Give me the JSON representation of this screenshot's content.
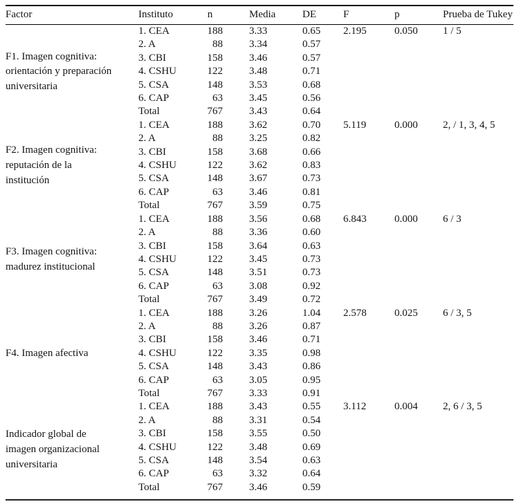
{
  "table": {
    "columns": [
      "Factor",
      "Instituto",
      "n",
      "Media",
      "DE",
      "F",
      "p",
      "Prueba de Tukey"
    ],
    "groups": [
      {
        "factor": "F1. Imagen cognitiva:\norientación y preparación\nuniversitaria",
        "F": "2.195",
        "p": "0.050",
        "tukey": "1 / 5",
        "rows": [
          {
            "instituto": "1. CEA",
            "n": "188",
            "media": "3.33",
            "de": "0.65"
          },
          {
            "instituto": "2. A",
            "n": "88",
            "media": "3.34",
            "de": "0.57"
          },
          {
            "instituto": "3. CBI",
            "n": "158",
            "media": "3.46",
            "de": "0.57"
          },
          {
            "instituto": "4. CSHU",
            "n": "122",
            "media": "3.48",
            "de": "0.71"
          },
          {
            "instituto": "5. CSA",
            "n": "148",
            "media": "3.53",
            "de": "0.68"
          },
          {
            "instituto": "6. CAP",
            "n": "63",
            "media": "3.45",
            "de": "0.56"
          },
          {
            "instituto": "Total",
            "n": "767",
            "media": "3.43",
            "de": "0.64"
          }
        ]
      },
      {
        "factor": "F2. Imagen cognitiva:\nreputación de la\ninstitución",
        "F": "5.119",
        "p": "0.000",
        "tukey": "2, / 1, 3, 4, 5",
        "rows": [
          {
            "instituto": "1. CEA",
            "n": "188",
            "media": "3.62",
            "de": "0.70"
          },
          {
            "instituto": "2. A",
            "n": "88",
            "media": "3.25",
            "de": "0.82"
          },
          {
            "instituto": "3. CBI",
            "n": "158",
            "media": "3.68",
            "de": "0.66"
          },
          {
            "instituto": "4. CSHU",
            "n": "122",
            "media": "3.62",
            "de": "0.83"
          },
          {
            "instituto": "5. CSA",
            "n": "148",
            "media": "3.67",
            "de": "0.73"
          },
          {
            "instituto": "6. CAP",
            "n": "63",
            "media": "3.46",
            "de": "0.81"
          },
          {
            "instituto": "Total",
            "n": "767",
            "media": "3.59",
            "de": "0.75"
          }
        ]
      },
      {
        "factor": "F3. Imagen cognitiva:\nmadurez institucional",
        "F": "6.843",
        "p": "0.000",
        "tukey": "6 / 3",
        "rows": [
          {
            "instituto": "1. CEA",
            "n": "188",
            "media": "3.56",
            "de": "0.68"
          },
          {
            "instituto": "2. A",
            "n": "88",
            "media": "3.36",
            "de": "0.60"
          },
          {
            "instituto": "3. CBI",
            "n": "158",
            "media": "3.64",
            "de": "0.63"
          },
          {
            "instituto": "4. CSHU",
            "n": "122",
            "media": "3.45",
            "de": "0.73"
          },
          {
            "instituto": "5. CSA",
            "n": "148",
            "media": "3.51",
            "de": "0.73"
          },
          {
            "instituto": "6. CAP",
            "n": "63",
            "media": "3.08",
            "de": "0.92"
          },
          {
            "instituto": "Total",
            "n": "767",
            "media": "3.49",
            "de": "0.72"
          }
        ]
      },
      {
        "factor": "F4. Imagen afectiva",
        "F": "2.578",
        "p": "0.025",
        "tukey": "6 / 3, 5",
        "rows": [
          {
            "instituto": "1. CEA",
            "n": "188",
            "media": "3.26",
            "de": "1.04"
          },
          {
            "instituto": "2. A",
            "n": "88",
            "media": "3.26",
            "de": "0.87"
          },
          {
            "instituto": "3. CBI",
            "n": "158",
            "media": "3.46",
            "de": "0.71"
          },
          {
            "instituto": "4. CSHU",
            "n": "122",
            "media": "3.35",
            "de": "0.98"
          },
          {
            "instituto": "5. CSA",
            "n": "148",
            "media": "3.43",
            "de": "0.86"
          },
          {
            "instituto": "6. CAP",
            "n": "63",
            "media": "3.05",
            "de": "0.95"
          },
          {
            "instituto": "Total",
            "n": "767",
            "media": "3.33",
            "de": "0.91"
          }
        ]
      },
      {
        "factor": "Indicador global de\nimagen organizacional\nuniversitaria",
        "F": "3.112",
        "p": "0.004",
        "tukey": "2, 6 / 3, 5",
        "rows": [
          {
            "instituto": "1. CEA",
            "n": "188",
            "media": "3.43",
            "de": "0.55"
          },
          {
            "instituto": "2. A",
            "n": "88",
            "media": "3.31",
            "de": "0.54"
          },
          {
            "instituto": "3. CBI",
            "n": "158",
            "media": "3.55",
            "de": "0.50"
          },
          {
            "instituto": "4. CSHU",
            "n": "122",
            "media": "3.48",
            "de": "0.69"
          },
          {
            "instituto": "5. CSA",
            "n": "148",
            "media": "3.54",
            "de": "0.63"
          },
          {
            "instituto": "6. CAP",
            "n": "63",
            "media": "3.32",
            "de": "0.64"
          },
          {
            "instituto": "Total",
            "n": "767",
            "media": "3.46",
            "de": "0.59"
          }
        ]
      }
    ]
  }
}
